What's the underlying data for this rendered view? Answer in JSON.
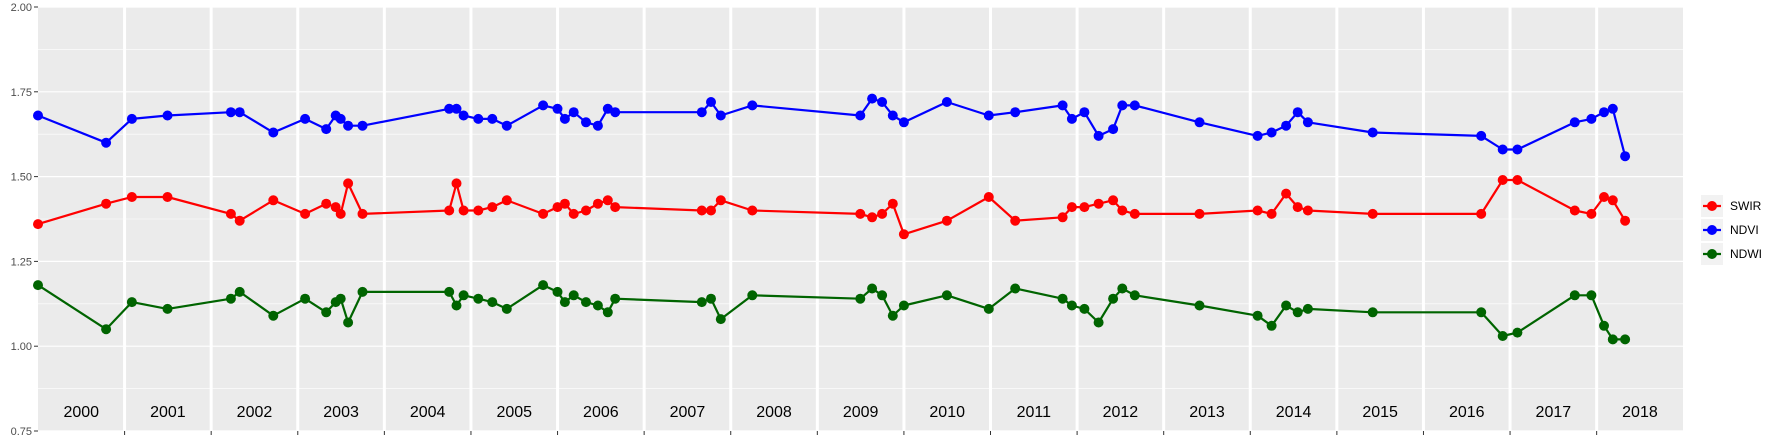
{
  "chart_data": {
    "type": "line",
    "title": "",
    "xlabel": "",
    "ylabel": "",
    "x_range": [
      "2000-01-01",
      "2018-12-31"
    ],
    "ylim": [
      0.75,
      2.0
    ],
    "yticks": [
      "0.75",
      "1.00",
      "1.25",
      "1.50",
      "1.75",
      "2.00"
    ],
    "year_labels": [
      "2000",
      "2001",
      "2002",
      "2003",
      "2004",
      "2005",
      "2006",
      "2007",
      "2008",
      "2009",
      "2010",
      "2011",
      "2012",
      "2013",
      "2014",
      "2015",
      "2016",
      "2017",
      "2018"
    ],
    "grid": true,
    "legend_position": "right",
    "series": [
      {
        "name": "SWIR",
        "color": "#ff0000",
        "points": [
          [
            "2000-01-01",
            1.36
          ],
          [
            "2000-10-15",
            1.42
          ],
          [
            "2001-02-01",
            1.44
          ],
          [
            "2001-07-01",
            1.44
          ],
          [
            "2002-03-25",
            1.39
          ],
          [
            "2002-05-01",
            1.37
          ],
          [
            "2002-09-20",
            1.43
          ],
          [
            "2003-02-01",
            1.39
          ],
          [
            "2003-05-01",
            1.42
          ],
          [
            "2003-06-10",
            1.41
          ],
          [
            "2003-07-01",
            1.39
          ],
          [
            "2003-08-01",
            1.48
          ],
          [
            "2003-10-01",
            1.39
          ],
          [
            "2004-10-01",
            1.4
          ],
          [
            "2004-11-01",
            1.48
          ],
          [
            "2004-12-01",
            1.4
          ],
          [
            "2005-02-01",
            1.4
          ],
          [
            "2005-04-01",
            1.41
          ],
          [
            "2005-06-01",
            1.43
          ],
          [
            "2005-11-01",
            1.39
          ],
          [
            "2006-01-01",
            1.41
          ],
          [
            "2006-02-01",
            1.42
          ],
          [
            "2006-03-10",
            1.39
          ],
          [
            "2006-05-01",
            1.4
          ],
          [
            "2006-06-20",
            1.42
          ],
          [
            "2006-08-01",
            1.43
          ],
          [
            "2006-09-01",
            1.41
          ],
          [
            "2007-09-01",
            1.4
          ],
          [
            "2007-10-10",
            1.4
          ],
          [
            "2007-11-20",
            1.43
          ],
          [
            "2008-04-01",
            1.4
          ],
          [
            "2009-07-01",
            1.39
          ],
          [
            "2009-08-20",
            1.38
          ],
          [
            "2009-10-01",
            1.39
          ],
          [
            "2009-11-15",
            1.42
          ],
          [
            "2010-01-01",
            1.33
          ],
          [
            "2010-07-01",
            1.37
          ],
          [
            "2010-12-25",
            1.44
          ],
          [
            "2011-04-15",
            1.37
          ],
          [
            "2011-11-01",
            1.38
          ],
          [
            "2011-12-10",
            1.41
          ],
          [
            "2012-02-01",
            1.41
          ],
          [
            "2012-04-01",
            1.42
          ],
          [
            "2012-06-01",
            1.43
          ],
          [
            "2012-07-10",
            1.4
          ],
          [
            "2012-09-01",
            1.39
          ],
          [
            "2013-06-01",
            1.39
          ],
          [
            "2014-02-01",
            1.4
          ],
          [
            "2014-04-01",
            1.39
          ],
          [
            "2014-06-01",
            1.45
          ],
          [
            "2014-07-20",
            1.41
          ],
          [
            "2014-09-01",
            1.4
          ],
          [
            "2015-06-01",
            1.39
          ],
          [
            "2016-09-01",
            1.39
          ],
          [
            "2016-12-01",
            1.49
          ],
          [
            "2017-02-01",
            1.49
          ],
          [
            "2017-10-01",
            1.4
          ],
          [
            "2017-12-10",
            1.39
          ],
          [
            "2018-02-01",
            1.44
          ],
          [
            "2018-03-10",
            1.43
          ],
          [
            "2018-05-01",
            1.37
          ]
        ]
      },
      {
        "name": "NDVI",
        "color": "#0000ff",
        "points": [
          [
            "2000-01-01",
            1.68
          ],
          [
            "2000-10-15",
            1.6
          ],
          [
            "2001-02-01",
            1.67
          ],
          [
            "2001-07-01",
            1.68
          ],
          [
            "2002-03-25",
            1.69
          ],
          [
            "2002-05-01",
            1.69
          ],
          [
            "2002-09-20",
            1.63
          ],
          [
            "2003-02-01",
            1.67
          ],
          [
            "2003-05-01",
            1.64
          ],
          [
            "2003-06-10",
            1.68
          ],
          [
            "2003-07-01",
            1.67
          ],
          [
            "2003-08-01",
            1.65
          ],
          [
            "2003-10-01",
            1.65
          ],
          [
            "2004-10-01",
            1.7
          ],
          [
            "2004-11-01",
            1.7
          ],
          [
            "2004-12-01",
            1.68
          ],
          [
            "2005-02-01",
            1.67
          ],
          [
            "2005-04-01",
            1.67
          ],
          [
            "2005-06-01",
            1.65
          ],
          [
            "2005-11-01",
            1.71
          ],
          [
            "2006-01-01",
            1.7
          ],
          [
            "2006-02-01",
            1.67
          ],
          [
            "2006-03-10",
            1.69
          ],
          [
            "2006-05-01",
            1.66
          ],
          [
            "2006-06-20",
            1.65
          ],
          [
            "2006-08-01",
            1.7
          ],
          [
            "2006-09-01",
            1.69
          ],
          [
            "2007-09-01",
            1.69
          ],
          [
            "2007-10-10",
            1.72
          ],
          [
            "2007-11-20",
            1.68
          ],
          [
            "2008-04-01",
            1.71
          ],
          [
            "2009-07-01",
            1.68
          ],
          [
            "2009-08-20",
            1.73
          ],
          [
            "2009-10-01",
            1.72
          ],
          [
            "2009-11-15",
            1.68
          ],
          [
            "2010-01-01",
            1.66
          ],
          [
            "2010-07-01",
            1.72
          ],
          [
            "2010-12-25",
            1.68
          ],
          [
            "2011-04-15",
            1.69
          ],
          [
            "2011-11-01",
            1.71
          ],
          [
            "2011-12-10",
            1.67
          ],
          [
            "2012-02-01",
            1.69
          ],
          [
            "2012-04-01",
            1.62
          ],
          [
            "2012-06-01",
            1.64
          ],
          [
            "2012-07-10",
            1.71
          ],
          [
            "2012-09-01",
            1.71
          ],
          [
            "2013-06-01",
            1.66
          ],
          [
            "2014-02-01",
            1.62
          ],
          [
            "2014-04-01",
            1.63
          ],
          [
            "2014-06-01",
            1.65
          ],
          [
            "2014-07-20",
            1.69
          ],
          [
            "2014-09-01",
            1.66
          ],
          [
            "2015-06-01",
            1.63
          ],
          [
            "2016-09-01",
            1.62
          ],
          [
            "2016-12-01",
            1.58
          ],
          [
            "2017-02-01",
            1.58
          ],
          [
            "2017-10-01",
            1.66
          ],
          [
            "2017-12-10",
            1.67
          ],
          [
            "2018-02-01",
            1.69
          ],
          [
            "2018-03-10",
            1.7
          ],
          [
            "2018-05-01",
            1.56
          ]
        ]
      },
      {
        "name": "NDWI",
        "color": "#006400",
        "points": [
          [
            "2000-01-01",
            1.18
          ],
          [
            "2000-10-15",
            1.05
          ],
          [
            "2001-02-01",
            1.13
          ],
          [
            "2001-07-01",
            1.11
          ],
          [
            "2002-03-25",
            1.14
          ],
          [
            "2002-05-01",
            1.16
          ],
          [
            "2002-09-20",
            1.09
          ],
          [
            "2003-02-01",
            1.14
          ],
          [
            "2003-05-01",
            1.1
          ],
          [
            "2003-06-10",
            1.13
          ],
          [
            "2003-07-01",
            1.14
          ],
          [
            "2003-08-01",
            1.07
          ],
          [
            "2003-10-01",
            1.16
          ],
          [
            "2004-10-01",
            1.16
          ],
          [
            "2004-11-01",
            1.12
          ],
          [
            "2004-12-01",
            1.15
          ],
          [
            "2005-02-01",
            1.14
          ],
          [
            "2005-04-01",
            1.13
          ],
          [
            "2005-06-01",
            1.11
          ],
          [
            "2005-11-01",
            1.18
          ],
          [
            "2006-01-01",
            1.16
          ],
          [
            "2006-02-01",
            1.13
          ],
          [
            "2006-03-10",
            1.15
          ],
          [
            "2006-05-01",
            1.13
          ],
          [
            "2006-06-20",
            1.12
          ],
          [
            "2006-08-01",
            1.1
          ],
          [
            "2006-09-01",
            1.14
          ],
          [
            "2007-09-01",
            1.13
          ],
          [
            "2007-10-10",
            1.14
          ],
          [
            "2007-11-20",
            1.08
          ],
          [
            "2008-04-01",
            1.15
          ],
          [
            "2009-07-01",
            1.14
          ],
          [
            "2009-08-20",
            1.17
          ],
          [
            "2009-10-01",
            1.15
          ],
          [
            "2009-11-15",
            1.09
          ],
          [
            "2010-01-01",
            1.12
          ],
          [
            "2010-07-01",
            1.15
          ],
          [
            "2010-12-25",
            1.11
          ],
          [
            "2011-04-15",
            1.17
          ],
          [
            "2011-11-01",
            1.14
          ],
          [
            "2011-12-10",
            1.12
          ],
          [
            "2012-02-01",
            1.11
          ],
          [
            "2012-04-01",
            1.07
          ],
          [
            "2012-06-01",
            1.14
          ],
          [
            "2012-07-10",
            1.17
          ],
          [
            "2012-09-01",
            1.15
          ],
          [
            "2013-06-01",
            1.12
          ],
          [
            "2014-02-01",
            1.09
          ],
          [
            "2014-04-01",
            1.06
          ],
          [
            "2014-06-01",
            1.12
          ],
          [
            "2014-07-20",
            1.1
          ],
          [
            "2014-09-01",
            1.11
          ],
          [
            "2015-06-01",
            1.1
          ],
          [
            "2016-09-01",
            1.1
          ],
          [
            "2016-12-01",
            1.03
          ],
          [
            "2017-02-01",
            1.04
          ],
          [
            "2017-10-01",
            1.15
          ],
          [
            "2017-12-10",
            1.15
          ],
          [
            "2018-02-01",
            1.06
          ],
          [
            "2018-03-10",
            1.02
          ],
          [
            "2018-05-01",
            1.02
          ]
        ]
      }
    ]
  }
}
